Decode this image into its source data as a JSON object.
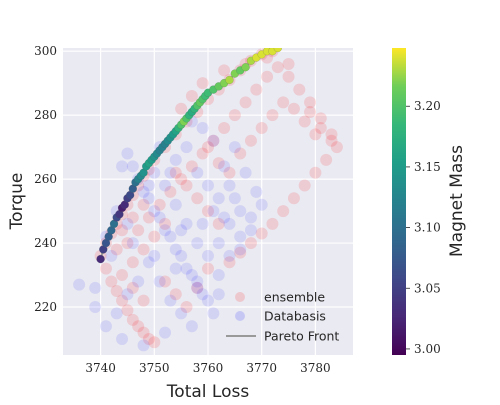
{
  "chart_data": {
    "type": "scatter",
    "xlabel": "Total Loss",
    "ylabel": "Torque",
    "xlim": [
      3733,
      3787
    ],
    "ylim": [
      205,
      301
    ],
    "xticks": [
      3740,
      3750,
      3760,
      3770,
      3780
    ],
    "yticks": [
      220,
      240,
      260,
      280,
      300
    ],
    "grid": true,
    "legend_position": "lower-right",
    "legend": [
      "ensemble",
      "Databasis",
      "Pareto Front"
    ],
    "colorbar": {
      "label": "Magnet Mass",
      "range": [
        2.995,
        3.248
      ],
      "ticks": [
        3.0,
        3.05,
        3.1,
        3.15,
        3.2
      ],
      "colormap": "viridis"
    },
    "colors": {
      "ensemble": "#ff0000",
      "databasis": "#0000ff",
      "pareto_front": "#999999",
      "plot_background": "#eaeaf2",
      "grid": "#ffffff"
    },
    "series": [
      {
        "name": "ensemble",
        "points": [
          [
            3740,
            236
          ],
          [
            3741,
            240
          ],
          [
            3742,
            243
          ],
          [
            3743,
            246
          ],
          [
            3744,
            249
          ],
          [
            3745,
            252
          ],
          [
            3746,
            255
          ],
          [
            3747,
            258
          ],
          [
            3748,
            261
          ],
          [
            3749,
            263
          ],
          [
            3750,
            266
          ],
          [
            3752,
            270
          ],
          [
            3754,
            274
          ],
          [
            3756,
            278
          ],
          [
            3758,
            281
          ],
          [
            3760,
            285
          ],
          [
            3762,
            288
          ],
          [
            3764,
            291
          ],
          [
            3766,
            294
          ],
          [
            3768,
            297
          ],
          [
            3770,
            299
          ],
          [
            3772,
            300
          ],
          [
            3741,
            232
          ],
          [
            3742,
            228
          ],
          [
            3743,
            225
          ],
          [
            3744,
            222
          ],
          [
            3745,
            219
          ],
          [
            3746,
            216
          ],
          [
            3747,
            214
          ],
          [
            3748,
            212
          ],
          [
            3749,
            210
          ],
          [
            3750,
            209
          ],
          [
            3745,
            240
          ],
          [
            3747,
            244
          ],
          [
            3749,
            248
          ],
          [
            3751,
            252
          ],
          [
            3753,
            256
          ],
          [
            3755,
            260
          ],
          [
            3757,
            264
          ],
          [
            3759,
            268
          ],
          [
            3761,
            272
          ],
          [
            3763,
            276
          ],
          [
            3765,
            280
          ],
          [
            3767,
            284
          ],
          [
            3769,
            288
          ],
          [
            3771,
            292
          ],
          [
            3773,
            295
          ],
          [
            3775,
            292
          ],
          [
            3777,
            288
          ],
          [
            3779,
            284
          ],
          [
            3781,
            279
          ],
          [
            3783,
            274
          ],
          [
            3784,
            270
          ],
          [
            3782,
            266
          ],
          [
            3780,
            262
          ],
          [
            3778,
            258
          ],
          [
            3776,
            254
          ],
          [
            3774,
            250
          ],
          [
            3772,
            246
          ],
          [
            3770,
            243
          ],
          [
            3768,
            240
          ],
          [
            3766,
            237
          ],
          [
            3764,
            234
          ],
          [
            3760,
            270
          ],
          [
            3762,
            265
          ],
          [
            3764,
            262
          ],
          [
            3766,
            268
          ],
          [
            3768,
            272
          ],
          [
            3770,
            276
          ],
          [
            3772,
            280
          ],
          [
            3774,
            284
          ],
          [
            3776,
            282
          ],
          [
            3778,
            278
          ],
          [
            3780,
            274
          ],
          [
            3756,
            258
          ],
          [
            3758,
            254
          ],
          [
            3760,
            250
          ],
          [
            3762,
            246
          ],
          [
            3754,
            262
          ],
          [
            3752,
            246
          ],
          [
            3750,
            242
          ],
          [
            3748,
            238
          ],
          [
            3746,
            234
          ],
          [
            3744,
            230
          ],
          [
            3746,
            226
          ],
          [
            3748,
            222
          ],
          [
            3752,
            228
          ],
          [
            3754,
            224
          ],
          [
            3756,
            220
          ],
          [
            3758,
            226
          ],
          [
            3760,
            232
          ],
          [
            3743,
            238
          ],
          [
            3744,
            244
          ],
          [
            3746,
            248
          ],
          [
            3748,
            252
          ],
          [
            3755,
            282
          ],
          [
            3757,
            286
          ],
          [
            3759,
            290
          ],
          [
            3763,
            294
          ],
          [
            3767,
            296
          ],
          [
            3771,
            298
          ],
          [
            3775,
            296
          ],
          [
            3779,
            281
          ],
          [
            3781,
            276
          ],
          [
            3783,
            272
          ]
        ]
      },
      {
        "name": "Databasis",
        "points": [
          [
            3746,
            264
          ],
          [
            3748,
            256
          ],
          [
            3750,
            250
          ],
          [
            3752,
            244
          ],
          [
            3754,
            238
          ],
          [
            3756,
            232
          ],
          [
            3758,
            226
          ],
          [
            3760,
            222
          ],
          [
            3762,
            230
          ],
          [
            3764,
            236
          ],
          [
            3766,
            242
          ],
          [
            3768,
            248
          ],
          [
            3770,
            252
          ],
          [
            3750,
            262
          ],
          [
            3752,
            258
          ],
          [
            3754,
            252
          ],
          [
            3756,
            246
          ],
          [
            3758,
            240
          ],
          [
            3760,
            236
          ],
          [
            3762,
            240
          ],
          [
            3764,
            246
          ],
          [
            3766,
            250
          ],
          [
            3758,
            262
          ],
          [
            3760,
            258
          ],
          [
            3762,
            254
          ],
          [
            3764,
            258
          ],
          [
            3754,
            266
          ],
          [
            3756,
            270
          ],
          [
            3745,
            268
          ],
          [
            3744,
            264
          ],
          [
            3747,
            260
          ],
          [
            3749,
            254
          ],
          [
            3751,
            248
          ],
          [
            3753,
            242
          ],
          [
            3755,
            236
          ],
          [
            3757,
            230
          ],
          [
            3759,
            224
          ],
          [
            3761,
            218
          ],
          [
            3749,
            234
          ],
          [
            3751,
            228
          ],
          [
            3753,
            222
          ],
          [
            3755,
            218
          ],
          [
            3757,
            214
          ],
          [
            3747,
            228
          ],
          [
            3745,
            224
          ],
          [
            3743,
            218
          ],
          [
            3741,
            214
          ],
          [
            3739,
            220
          ],
          [
            3736,
            227
          ],
          [
            3744,
            210
          ],
          [
            3748,
            208
          ],
          [
            3752,
            212
          ],
          [
            3742,
            236
          ],
          [
            3746,
            240
          ],
          [
            3750,
            236
          ],
          [
            3754,
            232
          ],
          [
            3758,
            228
          ],
          [
            3762,
            224
          ],
          [
            3766,
            238
          ],
          [
            3768,
            244
          ],
          [
            3763,
            264
          ],
          [
            3765,
            270
          ],
          [
            3767,
            262
          ],
          [
            3769,
            256
          ],
          [
            3761,
            272
          ],
          [
            3759,
            276
          ],
          [
            3757,
            278
          ],
          [
            3753,
            262
          ],
          [
            3751,
            270
          ],
          [
            3749,
            258
          ],
          [
            3743,
            250
          ],
          [
            3745,
            246
          ],
          [
            3741,
            242
          ],
          [
            3739,
            226
          ],
          [
            3755,
            244
          ],
          [
            3759,
            246
          ],
          [
            3761,
            250
          ],
          [
            3763,
            248
          ],
          [
            3765,
            254
          ]
        ]
      },
      {
        "name": "Pareto Front",
        "points": [
          [
            3740,
            235,
            3.03
          ],
          [
            3740.5,
            238,
            3.05
          ],
          [
            3741,
            240,
            3.07
          ],
          [
            3741.5,
            242,
            3.08
          ],
          [
            3742,
            244,
            3.09
          ],
          [
            3742.5,
            246,
            3.1
          ],
          [
            3743,
            248,
            3.06
          ],
          [
            3743.5,
            249,
            3.04
          ],
          [
            3744,
            251,
            3.02
          ],
          [
            3744.5,
            252,
            3.03
          ],
          [
            3745,
            254,
            3.05
          ],
          [
            3745.5,
            255,
            3.06
          ],
          [
            3746,
            257,
            3.08
          ],
          [
            3746.5,
            259,
            3.1
          ],
          [
            3747,
            260,
            3.12
          ],
          [
            3747.5,
            261,
            3.13
          ],
          [
            3748,
            262,
            3.14
          ],
          [
            3748.5,
            264,
            3.15
          ],
          [
            3749,
            265,
            3.16
          ],
          [
            3749.5,
            266,
            3.15
          ],
          [
            3750,
            267,
            3.14
          ],
          [
            3750.5,
            268,
            3.13
          ],
          [
            3751,
            269,
            3.12
          ],
          [
            3751.5,
            270,
            3.12
          ],
          [
            3752,
            271,
            3.12
          ],
          [
            3752.5,
            272,
            3.13
          ],
          [
            3753,
            273,
            3.14
          ],
          [
            3753.5,
            274,
            3.15
          ],
          [
            3754,
            275,
            3.16
          ],
          [
            3754.5,
            276,
            3.18
          ],
          [
            3755,
            277,
            3.2
          ],
          [
            3755.5,
            278,
            3.22
          ],
          [
            3756,
            279,
            3.2
          ],
          [
            3756.5,
            280,
            3.18
          ],
          [
            3757,
            281,
            3.17
          ],
          [
            3757.5,
            282,
            3.18
          ],
          [
            3758,
            283,
            3.2
          ],
          [
            3758.5,
            284,
            3.21
          ],
          [
            3759,
            285,
            3.2
          ],
          [
            3759.5,
            286,
            3.19
          ],
          [
            3760,
            287,
            3.19
          ],
          [
            3761,
            288,
            3.2
          ],
          [
            3762,
            289,
            3.21
          ],
          [
            3763,
            290,
            3.22
          ],
          [
            3764,
            291,
            3.23
          ],
          [
            3765,
            293,
            3.22
          ],
          [
            3766,
            294,
            3.21
          ],
          [
            3767,
            295,
            3.22
          ],
          [
            3768,
            297,
            3.23
          ],
          [
            3769,
            298,
            3.24
          ],
          [
            3770,
            299,
            3.24
          ],
          [
            3771,
            300,
            3.24
          ],
          [
            3772,
            300,
            3.24
          ],
          [
            3773,
            301,
            3.24
          ]
        ]
      }
    ]
  }
}
